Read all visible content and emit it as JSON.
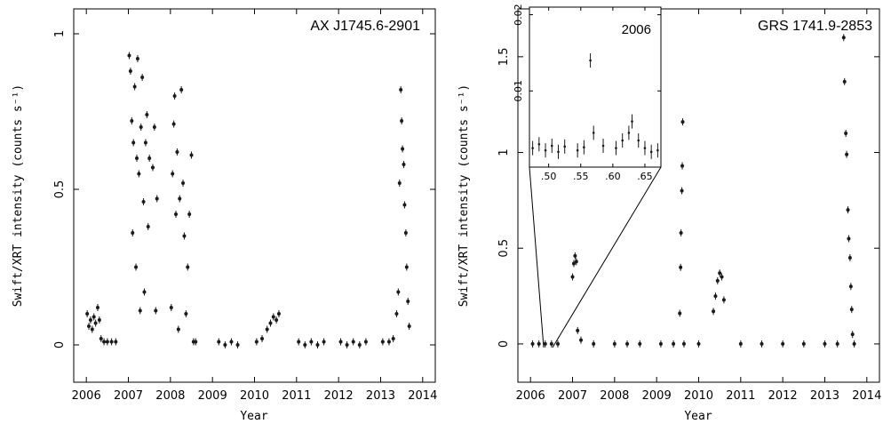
{
  "chart_data": [
    {
      "type": "scatter",
      "title": "AX J1745.6-2901",
      "xlabel": "Year",
      "ylabel": "Swift/XRT intensity (counts s⁻¹)",
      "xlim": [
        2005.7,
        2014.3
      ],
      "ylim": [
        -0.12,
        1.08
      ],
      "xticks": [
        2006,
        2007,
        2008,
        2009,
        2010,
        2011,
        2012,
        2013,
        2014
      ],
      "xtick_labels": [
        "2006",
        "2007",
        "2008",
        "2009",
        "2010",
        "2011",
        "2012",
        "2013",
        "2014"
      ],
      "yticks": [
        0,
        0.5,
        1
      ],
      "ytick_labels": [
        "0",
        "0.5",
        "1"
      ],
      "series": [
        {
          "points": [
            {
              "t": 2006.02,
              "v": 0.1
            },
            {
              "t": 2006.06,
              "v": 0.06
            },
            {
              "t": 2006.1,
              "v": 0.08
            },
            {
              "t": 2006.14,
              "v": 0.05
            },
            {
              "t": 2006.18,
              "v": 0.09
            },
            {
              "t": 2006.22,
              "v": 0.07
            },
            {
              "t": 2006.27,
              "v": 0.12
            },
            {
              "t": 2006.31,
              "v": 0.08
            },
            {
              "t": 2006.35,
              "v": 0.02
            },
            {
              "t": 2006.42,
              "v": 0.01
            },
            {
              "t": 2006.5,
              "v": 0.01
            },
            {
              "t": 2006.6,
              "v": 0.01
            },
            {
              "t": 2006.7,
              "v": 0.01
            },
            {
              "t": 2007.02,
              "v": 0.93
            },
            {
              "t": 2007.05,
              "v": 0.88
            },
            {
              "t": 2007.08,
              "v": 0.72
            },
            {
              "t": 2007.1,
              "v": 0.36
            },
            {
              "t": 2007.12,
              "v": 0.65
            },
            {
              "t": 2007.15,
              "v": 0.83
            },
            {
              "t": 2007.18,
              "v": 0.25
            },
            {
              "t": 2007.2,
              "v": 0.6
            },
            {
              "t": 2007.22,
              "v": 0.92
            },
            {
              "t": 2007.25,
              "v": 0.55
            },
            {
              "t": 2007.28,
              "v": 0.11
            },
            {
              "t": 2007.3,
              "v": 0.7
            },
            {
              "t": 2007.33,
              "v": 0.86
            },
            {
              "t": 2007.36,
              "v": 0.46
            },
            {
              "t": 2007.38,
              "v": 0.17
            },
            {
              "t": 2007.41,
              "v": 0.65
            },
            {
              "t": 2007.44,
              "v": 0.74
            },
            {
              "t": 2007.47,
              "v": 0.38
            },
            {
              "t": 2007.5,
              "v": 0.6
            },
            {
              "t": 2007.58,
              "v": 0.57
            },
            {
              "t": 2007.62,
              "v": 0.7
            },
            {
              "t": 2007.65,
              "v": 0.11
            },
            {
              "t": 2007.68,
              "v": 0.47
            },
            {
              "t": 2008.02,
              "v": 0.12
            },
            {
              "t": 2008.05,
              "v": 0.55
            },
            {
              "t": 2008.08,
              "v": 0.71
            },
            {
              "t": 2008.1,
              "v": 0.8
            },
            {
              "t": 2008.13,
              "v": 0.42
            },
            {
              "t": 2008.16,
              "v": 0.62
            },
            {
              "t": 2008.19,
              "v": 0.05
            },
            {
              "t": 2008.22,
              "v": 0.47
            },
            {
              "t": 2008.26,
              "v": 0.82
            },
            {
              "t": 2008.3,
              "v": 0.52
            },
            {
              "t": 2008.33,
              "v": 0.35
            },
            {
              "t": 2008.37,
              "v": 0.1
            },
            {
              "t": 2008.41,
              "v": 0.25
            },
            {
              "t": 2008.45,
              "v": 0.42
            },
            {
              "t": 2008.5,
              "v": 0.61
            },
            {
              "t": 2008.55,
              "v": 0.01
            },
            {
              "t": 2008.6,
              "v": 0.01
            },
            {
              "t": 2009.15,
              "v": 0.01
            },
            {
              "t": 2009.3,
              "v": 0.0
            },
            {
              "t": 2009.45,
              "v": 0.01
            },
            {
              "t": 2009.6,
              "v": 0.0
            },
            {
              "t": 2010.05,
              "v": 0.01
            },
            {
              "t": 2010.18,
              "v": 0.02
            },
            {
              "t": 2010.3,
              "v": 0.05
            },
            {
              "t": 2010.38,
              "v": 0.07
            },
            {
              "t": 2010.45,
              "v": 0.09
            },
            {
              "t": 2010.52,
              "v": 0.08
            },
            {
              "t": 2010.58,
              "v": 0.1
            },
            {
              "t": 2011.05,
              "v": 0.01
            },
            {
              "t": 2011.2,
              "v": 0.0
            },
            {
              "t": 2011.35,
              "v": 0.01
            },
            {
              "t": 2011.5,
              "v": 0.0
            },
            {
              "t": 2011.65,
              "v": 0.01
            },
            {
              "t": 2012.05,
              "v": 0.01
            },
            {
              "t": 2012.2,
              "v": 0.0
            },
            {
              "t": 2012.35,
              "v": 0.01
            },
            {
              "t": 2012.5,
              "v": 0.0
            },
            {
              "t": 2012.65,
              "v": 0.01
            },
            {
              "t": 2013.05,
              "v": 0.01
            },
            {
              "t": 2013.2,
              "v": 0.01
            },
            {
              "t": 2013.3,
              "v": 0.02
            },
            {
              "t": 2013.38,
              "v": 0.1
            },
            {
              "t": 2013.42,
              "v": 0.17
            },
            {
              "t": 2013.45,
              "v": 0.52
            },
            {
              "t": 2013.48,
              "v": 0.82
            },
            {
              "t": 2013.5,
              "v": 0.72
            },
            {
              "t": 2013.52,
              "v": 0.63
            },
            {
              "t": 2013.55,
              "v": 0.58
            },
            {
              "t": 2013.57,
              "v": 0.45
            },
            {
              "t": 2013.6,
              "v": 0.36
            },
            {
              "t": 2013.62,
              "v": 0.25
            },
            {
              "t": 2013.65,
              "v": 0.14
            },
            {
              "t": 2013.68,
              "v": 0.06
            }
          ]
        }
      ]
    },
    {
      "type": "scatter",
      "title": "GRS 1741.9-2853",
      "xlabel": "Year",
      "ylabel": "Swift/XRT intensity (counts s⁻¹)",
      "xlim": [
        2005.7,
        2014.3
      ],
      "ylim": [
        -0.2,
        1.75
      ],
      "xticks": [
        2006,
        2007,
        2008,
        2009,
        2010,
        2011,
        2012,
        2013,
        2014
      ],
      "xtick_labels": [
        "2006",
        "2007",
        "2008",
        "2009",
        "2010",
        "2011",
        "2012",
        "2013",
        "2014"
      ],
      "yticks": [
        0,
        0.5,
        1,
        1.5
      ],
      "ytick_labels": [
        "0",
        "0.5",
        "1",
        "1.5"
      ],
      "series": [
        {
          "points": [
            {
              "t": 2006.05,
              "v": 0.0
            },
            {
              "t": 2006.2,
              "v": 0.0
            },
            {
              "t": 2006.35,
              "v": 0.0
            },
            {
              "t": 2006.5,
              "v": 0.0
            },
            {
              "t": 2006.65,
              "v": 0.0
            },
            {
              "t": 2007.0,
              "v": 0.35
            },
            {
              "t": 2007.03,
              "v": 0.42
            },
            {
              "t": 2007.06,
              "v": 0.46
            },
            {
              "t": 2007.09,
              "v": 0.43
            },
            {
              "t": 2007.12,
              "v": 0.07
            },
            {
              "t": 2007.2,
              "v": 0.02
            },
            {
              "t": 2007.5,
              "v": 0.0
            },
            {
              "t": 2008.0,
              "v": 0.0
            },
            {
              "t": 2008.3,
              "v": 0.0
            },
            {
              "t": 2008.6,
              "v": 0.0
            },
            {
              "t": 2009.1,
              "v": 0.0
            },
            {
              "t": 2009.4,
              "v": 0.0
            },
            {
              "t": 2009.55,
              "v": 0.16
            },
            {
              "t": 2009.57,
              "v": 0.4
            },
            {
              "t": 2009.58,
              "v": 0.58
            },
            {
              "t": 2009.6,
              "v": 0.8
            },
            {
              "t": 2009.61,
              "v": 0.93
            },
            {
              "t": 2009.62,
              "v": 1.16
            },
            {
              "t": 2009.65,
              "v": 0.0
            },
            {
              "t": 2010.0,
              "v": 0.0
            },
            {
              "t": 2010.35,
              "v": 0.17
            },
            {
              "t": 2010.4,
              "v": 0.25
            },
            {
              "t": 2010.45,
              "v": 0.33
            },
            {
              "t": 2010.5,
              "v": 0.37
            },
            {
              "t": 2010.55,
              "v": 0.35
            },
            {
              "t": 2010.6,
              "v": 0.23
            },
            {
              "t": 2011.0,
              "v": 0.0
            },
            {
              "t": 2011.5,
              "v": 0.0
            },
            {
              "t": 2012.0,
              "v": 0.0
            },
            {
              "t": 2012.5,
              "v": 0.0
            },
            {
              "t": 2013.0,
              "v": 0.0
            },
            {
              "t": 2013.3,
              "v": 0.0
            },
            {
              "t": 2013.45,
              "v": 1.6
            },
            {
              "t": 2013.47,
              "v": 1.37
            },
            {
              "t": 2013.5,
              "v": 1.1
            },
            {
              "t": 2013.52,
              "v": 0.99
            },
            {
              "t": 2013.55,
              "v": 0.7
            },
            {
              "t": 2013.57,
              "v": 0.55
            },
            {
              "t": 2013.6,
              "v": 0.45
            },
            {
              "t": 2013.62,
              "v": 0.3
            },
            {
              "t": 2013.64,
              "v": 0.18
            },
            {
              "t": 2013.66,
              "v": 0.05
            },
            {
              "t": 2013.7,
              "v": 0.0
            }
          ]
        }
      ],
      "inset": {
        "title": "2006",
        "xlim": [
          2006.47,
          2006.675
        ],
        "ylim": [
          0.0,
          0.021
        ],
        "xticks": [
          2006.5,
          2006.55,
          2006.6,
          2006.65
        ],
        "xtick_labels": [
          ".50",
          ".55",
          ".60",
          ".65"
        ],
        "yticks": [
          0.01,
          0.02
        ],
        "ytick_labels": [
          "0.01",
          "0.02"
        ],
        "points": [
          {
            "t": 2006.475,
            "v": 0.0025
          },
          {
            "t": 2006.485,
            "v": 0.003
          },
          {
            "t": 2006.495,
            "v": 0.0022
          },
          {
            "t": 2006.505,
            "v": 0.0028
          },
          {
            "t": 2006.515,
            "v": 0.002
          },
          {
            "t": 2006.525,
            "v": 0.0027
          },
          {
            "t": 2006.545,
            "v": 0.0022
          },
          {
            "t": 2006.555,
            "v": 0.0026
          },
          {
            "t": 2006.565,
            "v": 0.014
          },
          {
            "t": 2006.57,
            "v": 0.0045
          },
          {
            "t": 2006.585,
            "v": 0.0028
          },
          {
            "t": 2006.605,
            "v": 0.0025
          },
          {
            "t": 2006.615,
            "v": 0.0035
          },
          {
            "t": 2006.625,
            "v": 0.0045
          },
          {
            "t": 2006.63,
            "v": 0.006
          },
          {
            "t": 2006.64,
            "v": 0.0035
          },
          {
            "t": 2006.65,
            "v": 0.0025
          },
          {
            "t": 2006.66,
            "v": 0.002
          },
          {
            "t": 2006.67,
            "v": 0.0022
          }
        ]
      }
    }
  ]
}
